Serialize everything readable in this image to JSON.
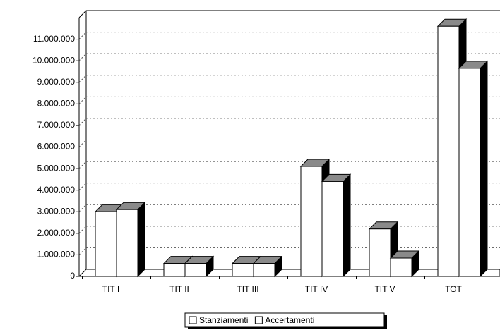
{
  "chart_data": {
    "type": "bar3d",
    "categories": [
      "TIT I",
      "TIT II",
      "TIT III",
      "TIT IV",
      "TIT V",
      "TOT"
    ],
    "series": [
      {
        "name": "Stanziamenti",
        "color": "#ffffff",
        "values": [
          3000000,
          600000,
          600000,
          5100000,
          2200000,
          11600000
        ]
      },
      {
        "name": "Accertamenti",
        "color": "#ffffff",
        "values": [
          3100000,
          600000,
          600000,
          4400000,
          850000,
          9650000
        ]
      }
    ],
    "ylim": [
      0,
      12000000
    ],
    "yticks": [
      {
        "value": 0,
        "label": "0"
      },
      {
        "value": 1000000,
        "label": "1.000.000"
      },
      {
        "value": 2000000,
        "label": "2.000.000"
      },
      {
        "value": 3000000,
        "label": "3.000.000"
      },
      {
        "value": 4000000,
        "label": "4.000.000"
      },
      {
        "value": 5000000,
        "label": "5.000.000"
      },
      {
        "value": 6000000,
        "label": "6.000.000"
      },
      {
        "value": 7000000,
        "label": "7.000.000"
      },
      {
        "value": 8000000,
        "label": "8.000.000"
      },
      {
        "value": 9000000,
        "label": "9.000.000"
      },
      {
        "value": 10000000,
        "label": "10.000.000"
      },
      {
        "value": 11000000,
        "label": "11.000.000"
      }
    ],
    "grid": true,
    "legend": "bottom"
  }
}
